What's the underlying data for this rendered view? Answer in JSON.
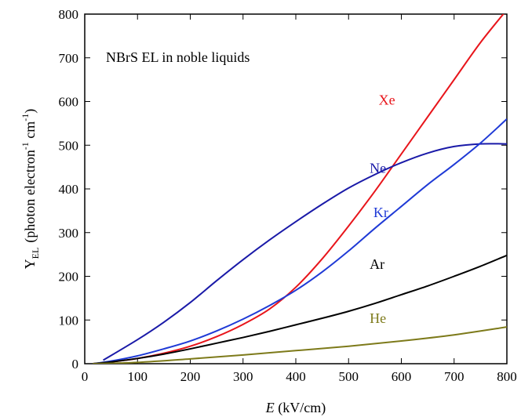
{
  "chart_data": {
    "type": "line",
    "title": "NBrS EL in noble liquids",
    "xlabel": {
      "prefix": "E",
      "suffix": " (kV/cm)"
    },
    "ylabel": {
      "base": "Y",
      "sub": "EL",
      "main": "(photon electron",
      "sup1": "-1",
      "mid": " cm",
      "sup2": "-1",
      "close": ")"
    },
    "xlim": [
      0,
      800
    ],
    "ylim": [
      0,
      800
    ],
    "xticks": [
      0,
      100,
      200,
      300,
      400,
      500,
      600,
      700,
      800
    ],
    "yticks": [
      0,
      100,
      200,
      300,
      400,
      500,
      600,
      700,
      800
    ],
    "grid": false,
    "series": [
      {
        "name": "Xe",
        "color": "#e8151b",
        "x": [
          15,
          50,
          100,
          150,
          200,
          250,
          300,
          350,
          400,
          450,
          500,
          550,
          600,
          650,
          700,
          750,
          800
        ],
        "y": [
          0,
          4,
          12,
          24,
          40,
          62,
          90,
          125,
          175,
          240,
          315,
          395,
          480,
          565,
          650,
          735,
          810
        ]
      },
      {
        "name": "Ne",
        "color": "#1a1aa8",
        "x": [
          35,
          100,
          150,
          200,
          250,
          300,
          350,
          400,
          450,
          500,
          550,
          600,
          650,
          700,
          750,
          800
        ],
        "y": [
          8,
          55,
          95,
          140,
          190,
          238,
          283,
          325,
          365,
          402,
          433,
          460,
          482,
          497,
          503,
          503
        ]
      },
      {
        "name": "Kr",
        "color": "#1f3ad6",
        "x": [
          15,
          50,
          100,
          150,
          200,
          250,
          300,
          350,
          400,
          450,
          500,
          550,
          600,
          650,
          700,
          750,
          800
        ],
        "y": [
          0,
          6,
          18,
          34,
          52,
          75,
          102,
          133,
          168,
          210,
          258,
          310,
          360,
          410,
          456,
          505,
          560
        ]
      },
      {
        "name": "Ar",
        "color": "#000000",
        "x": [
          15,
          50,
          100,
          150,
          200,
          250,
          300,
          350,
          400,
          450,
          500,
          550,
          600,
          650,
          700,
          750,
          800
        ],
        "y": [
          0,
          4,
          12,
          22,
          34,
          47,
          60,
          74,
          89,
          104,
          120,
          138,
          158,
          178,
          200,
          223,
          248
        ]
      },
      {
        "name": "He",
        "color": "#7d7a1a",
        "x": [
          15,
          100,
          200,
          300,
          400,
          500,
          600,
          700,
          800
        ],
        "y": [
          0,
          3,
          11,
          20,
          30,
          40,
          52,
          66,
          84
        ]
      }
    ],
    "annotations": [
      {
        "text": "Xe",
        "x": 557,
        "y": 593,
        "color": "#e8151b"
      },
      {
        "text": "Ne",
        "x": 540,
        "y": 437,
        "color": "#1a1aa8"
      },
      {
        "text": "Kr",
        "x": 547,
        "y": 335,
        "color": "#1f3ad6"
      },
      {
        "text": "Ar",
        "x": 540,
        "y": 217,
        "color": "#000000"
      },
      {
        "text": "He",
        "x": 540,
        "y": 93,
        "color": "#7d7a1a"
      }
    ]
  }
}
